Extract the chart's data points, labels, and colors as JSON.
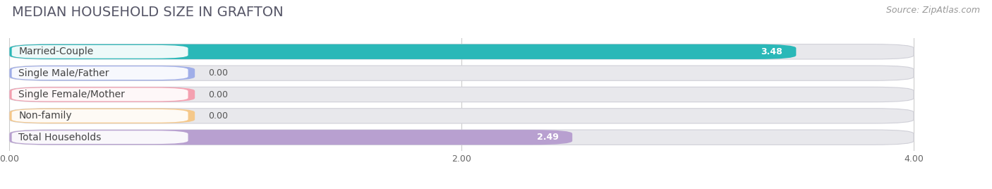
{
  "title": "MEDIAN HOUSEHOLD SIZE IN GRAFTON",
  "source": "Source: ZipAtlas.com",
  "categories": [
    "Married-Couple",
    "Single Male/Father",
    "Single Female/Mother",
    "Non-family",
    "Total Households"
  ],
  "values": [
    3.48,
    0.0,
    0.0,
    0.0,
    2.49
  ],
  "bar_colors": [
    "#2ab8b8",
    "#a0aee8",
    "#f4a0b0",
    "#f5c88a",
    "#b8a0d0"
  ],
  "background_color": "#ffffff",
  "bar_bg_color": "#e8e8ec",
  "chart_bg_color": "#f5f5f8",
  "xlim_min": 0,
  "xlim_max": 4.0,
  "xticks": [
    0.0,
    2.0,
    4.0
  ],
  "xtick_labels": [
    "0.00",
    "2.00",
    "4.00"
  ],
  "title_fontsize": 14,
  "source_fontsize": 9,
  "label_fontsize": 10,
  "value_fontsize": 9,
  "zero_bar_extent": 0.82
}
